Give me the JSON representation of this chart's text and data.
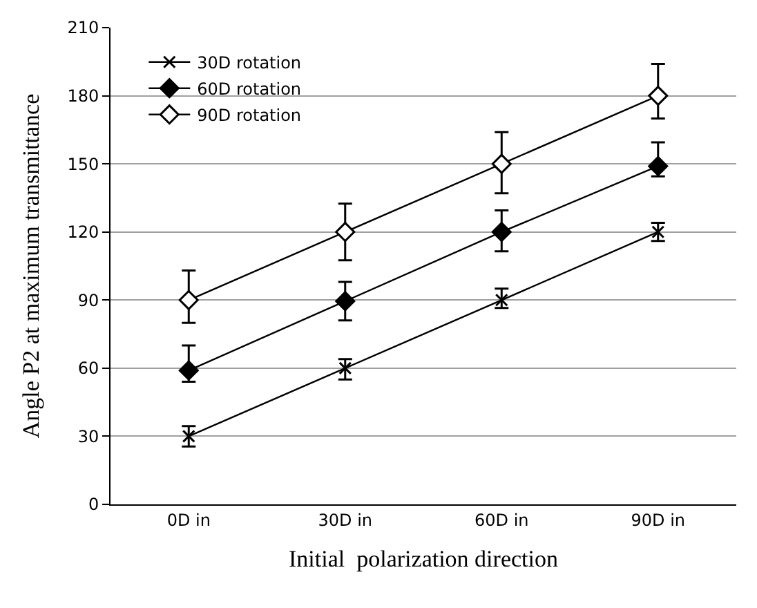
{
  "chart_data": {
    "type": "line",
    "xlabel": "Initial  polarization direction",
    "ylabel": "Angle P2 at maximum transmittance",
    "categories": [
      "0D in",
      "30D in",
      "60D in",
      "90D in"
    ],
    "series": [
      {
        "name": "30D rotation",
        "color": "#000000",
        "marker": "cross",
        "values": [
          30,
          60,
          90,
          120
        ],
        "errors": [
          [
            25.5,
            34.5
          ],
          [
            55,
            64
          ],
          [
            86.5,
            95
          ],
          [
            116,
            124
          ]
        ]
      },
      {
        "name": "60D rotation",
        "color": "#000000",
        "marker": "diamond",
        "values": [
          59,
          89.5,
          120,
          149
        ],
        "errors": [
          [
            54,
            70
          ],
          [
            81,
            98
          ],
          [
            111.5,
            129.5
          ],
          [
            144.5,
            159.5
          ]
        ]
      },
      {
        "name": "90D rotation",
        "color": "#000000",
        "marker": "diamond",
        "values": [
          90,
          120,
          150,
          180
        ],
        "errors": [
          [
            80,
            103
          ],
          [
            107.5,
            132.5
          ],
          [
            137,
            164
          ],
          [
            170,
            194
          ]
        ]
      }
    ],
    "ylim": [
      0,
      210
    ],
    "yticks": [
      0,
      30,
      60,
      90,
      120,
      150,
      180,
      210
    ],
    "grid": "y",
    "legend": "top left",
    "line_style": "solid"
  }
}
